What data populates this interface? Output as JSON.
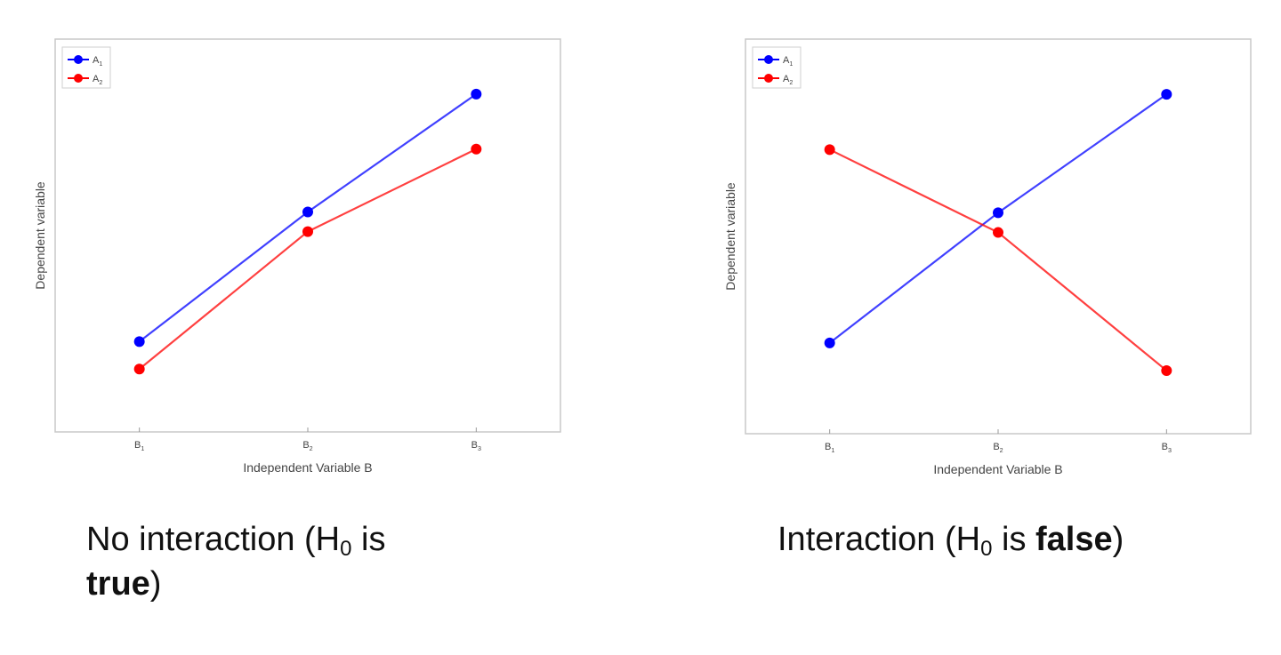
{
  "chart_data": [
    {
      "type": "line",
      "categories": [
        "B1",
        "B2",
        "B3"
      ],
      "category_labels": [
        {
          "base": "B",
          "sub": "1"
        },
        {
          "base": "B",
          "sub": "2"
        },
        {
          "base": "B",
          "sub": "3"
        }
      ],
      "series": [
        {
          "name": "A1",
          "legend": {
            "base": "A",
            "sub": "1"
          },
          "color": "#0000ff",
          "values": [
            0.23,
            0.56,
            0.86
          ]
        },
        {
          "name": "A2",
          "legend": {
            "base": "A",
            "sub": "2"
          },
          "color": "#ff0000",
          "values": [
            0.16,
            0.51,
            0.72
          ]
        }
      ],
      "xlabel": "Independent Variable B",
      "ylabel": "Dependent variable",
      "ylim": [
        0,
        1
      ],
      "grid": false,
      "legend_position": "top-left"
    },
    {
      "type": "line",
      "categories": [
        "B1",
        "B2",
        "B3"
      ],
      "category_labels": [
        {
          "base": "B",
          "sub": "1"
        },
        {
          "base": "B",
          "sub": "2"
        },
        {
          "base": "B",
          "sub": "3"
        }
      ],
      "series": [
        {
          "name": "A1",
          "legend": {
            "base": "A",
            "sub": "1"
          },
          "color": "#0000ff",
          "values": [
            0.23,
            0.56,
            0.86
          ]
        },
        {
          "name": "A2",
          "legend": {
            "base": "A",
            "sub": "2"
          },
          "color": "#ff0000",
          "values": [
            0.72,
            0.51,
            0.16
          ]
        }
      ],
      "xlabel": "Independent Variable B",
      "ylabel": "Dependent variable",
      "ylim": [
        0,
        1
      ],
      "grid": false,
      "legend_position": "top-left"
    }
  ],
  "captions": {
    "left": {
      "before": "No interaction (H",
      "sub": "0",
      "middle": " is",
      "bold": "true",
      "after": ")"
    },
    "right": {
      "before": "Interaction (H",
      "sub": "0",
      "middle": " is ",
      "bold": "false",
      "after": ")"
    }
  }
}
